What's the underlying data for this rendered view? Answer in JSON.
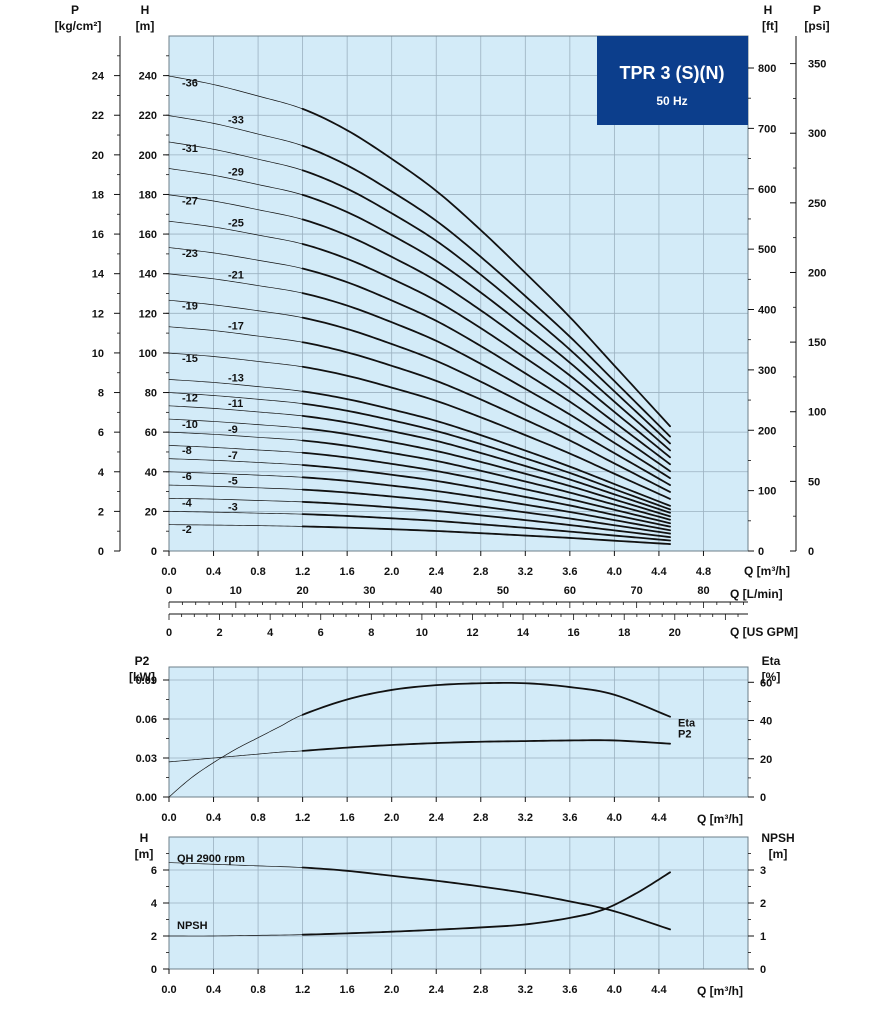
{
  "badge": {
    "title": "TPR 3 (S)(N)",
    "subtitle": "50 Hz"
  },
  "colors": {
    "plot_bg": "#d3ebf8",
    "grid": "#9bb1c0",
    "curve": "#111111",
    "badge_bg": "#0c3e8c",
    "badge_text": "#ffffff"
  },
  "units": {
    "p_kg_left": [
      "P",
      "[kg/cm²]"
    ],
    "h_m_left": [
      "H",
      "[m]"
    ],
    "h_ft_right": [
      "H",
      "[ft]"
    ],
    "p_psi_right": [
      "P",
      "[psi]"
    ],
    "q_m3h": "Q [m³/h]",
    "q_lmin": "Q [L/min]",
    "q_usgpm": "Q [US GPM]",
    "p2": [
      "P2",
      "[kW]"
    ],
    "eta": [
      "Eta",
      "[%]"
    ],
    "npsh_h": [
      "H",
      "[m]"
    ],
    "npsh_right": [
      "NPSH",
      "[m]"
    ]
  },
  "chart_data": [
    {
      "type": "line",
      "name": "head",
      "xlabel": "Q [m³/h]",
      "ylabel": "H [m]",
      "xlim": [
        0,
        5.2
      ],
      "ylim": [
        0,
        260
      ],
      "x_ticks": [
        "0.0",
        "0.4",
        "0.8",
        "1.2",
        "1.6",
        "2.0",
        "2.4",
        "2.8",
        "3.2",
        "3.6",
        "4.0",
        "4.4",
        "4.8"
      ],
      "y_ticks": [
        "0",
        "20",
        "40",
        "60",
        "80",
        "100",
        "120",
        "140",
        "160",
        "180",
        "200",
        "220",
        "240"
      ],
      "p_kgcm2_ticks": [
        "0",
        "2",
        "4",
        "6",
        "8",
        "10",
        "12",
        "14",
        "16",
        "18",
        "20",
        "22",
        "24"
      ],
      "h_ft_ticks": [
        "0",
        "100",
        "200",
        "300",
        "400",
        "500",
        "600",
        "700",
        "800"
      ],
      "p_psi_ticks": [
        "0",
        "50",
        "100",
        "150",
        "200",
        "250",
        "300",
        "350"
      ],
      "q_lmin_ticks": [
        "0",
        "10",
        "20",
        "30",
        "40",
        "50",
        "60",
        "70",
        "80"
      ],
      "q_usgpm_ticks": [
        "0",
        "2",
        "4",
        "6",
        "8",
        "10",
        "12",
        "14",
        "16",
        "18",
        "20"
      ],
      "x": [
        0,
        0.4,
        0.8,
        1.2,
        1.6,
        2.0,
        2.4,
        2.8,
        3.2,
        3.6,
        4.0,
        4.5
      ],
      "series": [
        {
          "name": "-2",
          "values": [
            13.3,
            13.1,
            12.8,
            12.4,
            11.8,
            11.0,
            10.1,
            9.0,
            7.8,
            6.6,
            5.2,
            3.5
          ]
        },
        {
          "name": "-3",
          "values": [
            20.0,
            19.6,
            19.1,
            18.6,
            17.7,
            16.5,
            15.2,
            13.5,
            11.7,
            9.8,
            7.8,
            5.3
          ]
        },
        {
          "name": "-4",
          "values": [
            26.6,
            26.2,
            25.5,
            24.8,
            23.6,
            22.0,
            20.2,
            18.0,
            15.6,
            13.1,
            10.4,
            7.0
          ]
        },
        {
          "name": "-5",
          "values": [
            33.3,
            32.7,
            31.9,
            31.0,
            29.5,
            27.5,
            25.3,
            22.5,
            19.5,
            16.4,
            13.0,
            8.8
          ]
        },
        {
          "name": "-6",
          "values": [
            40.0,
            39.2,
            38.3,
            37.2,
            35.4,
            33.0,
            30.3,
            27.0,
            23.4,
            19.7,
            15.6,
            10.5
          ]
        },
        {
          "name": "-7",
          "values": [
            46.6,
            45.8,
            44.7,
            43.4,
            41.3,
            38.5,
            35.4,
            31.5,
            27.3,
            23.0,
            18.2,
            12.3
          ]
        },
        {
          "name": "-8",
          "values": [
            53.3,
            52.3,
            51.0,
            49.6,
            47.2,
            44.0,
            40.4,
            36.0,
            31.2,
            26.2,
            20.8,
            14.0
          ]
        },
        {
          "name": "-9",
          "values": [
            60.0,
            58.9,
            57.4,
            55.8,
            53.1,
            49.5,
            45.5,
            40.5,
            35.1,
            29.5,
            23.4,
            15.8
          ]
        },
        {
          "name": "-10",
          "values": [
            66.6,
            65.4,
            63.8,
            62.0,
            59.0,
            55.0,
            50.5,
            45.0,
            39.0,
            32.8,
            26.0,
            17.5
          ]
        },
        {
          "name": "-11",
          "values": [
            73.3,
            72.0,
            70.2,
            68.2,
            64.9,
            60.5,
            55.6,
            49.5,
            42.9,
            36.1,
            28.6,
            19.3
          ]
        },
        {
          "name": "-12",
          "values": [
            80.0,
            78.5,
            76.6,
            74.4,
            70.8,
            66.0,
            60.6,
            54.0,
            46.8,
            39.4,
            31.2,
            21.0
          ]
        },
        {
          "name": "-13",
          "values": [
            86.6,
            85.1,
            83.0,
            80.6,
            76.7,
            71.5,
            65.7,
            58.5,
            50.7,
            42.6,
            33.8,
            22.8
          ]
        },
        {
          "name": "-15",
          "values": [
            99.9,
            98.2,
            95.7,
            93.0,
            88.5,
            82.5,
            75.8,
            67.5,
            58.5,
            49.2,
            39.0,
            26.3
          ]
        },
        {
          "name": "-17",
          "values": [
            113.2,
            111.3,
            108.5,
            105.4,
            100.3,
            93.5,
            85.9,
            76.5,
            66.3,
            55.8,
            44.2,
            29.8
          ]
        },
        {
          "name": "-19",
          "values": [
            126.6,
            124.3,
            121.3,
            117.8,
            112.1,
            104.5,
            96.0,
            85.5,
            74.1,
            62.3,
            49.4,
            33.3
          ]
        },
        {
          "name": "-21",
          "values": [
            139.9,
            137.4,
            134.0,
            130.2,
            123.9,
            115.5,
            106.1,
            94.5,
            81.9,
            68.9,
            54.6,
            36.8
          ]
        },
        {
          "name": "-23",
          "values": [
            153.2,
            150.5,
            146.8,
            142.6,
            135.7,
            126.5,
            116.2,
            103.5,
            89.7,
            75.4,
            59.8,
            40.3
          ]
        },
        {
          "name": "-25",
          "values": [
            166.5,
            163.6,
            159.5,
            155.0,
            147.5,
            137.5,
            126.3,
            112.5,
            97.5,
            82.0,
            65.0,
            43.8
          ]
        },
        {
          "name": "-27",
          "values": [
            179.8,
            176.7,
            172.3,
            167.4,
            159.3,
            148.5,
            136.4,
            121.5,
            105.3,
            88.6,
            70.2,
            47.3
          ]
        },
        {
          "name": "-29",
          "values": [
            193.1,
            189.7,
            185.0,
            179.8,
            171.1,
            159.5,
            146.5,
            130.5,
            113.1,
            95.1,
            75.4,
            50.8
          ]
        },
        {
          "name": "-31",
          "values": [
            206.5,
            202.8,
            197.8,
            192.2,
            182.9,
            170.5,
            156.6,
            139.5,
            120.9,
            101.7,
            80.6,
            54.3
          ]
        },
        {
          "name": "-33",
          "values": [
            219.8,
            215.9,
            210.5,
            204.6,
            194.7,
            181.5,
            166.7,
            148.5,
            128.7,
            108.2,
            85.8,
            57.8
          ]
        },
        {
          "name": "-36",
          "values": [
            239.8,
            235.5,
            229.7,
            223.2,
            212.4,
            198.0,
            181.8,
            162.0,
            140.4,
            118.1,
            93.6,
            63.0
          ]
        }
      ],
      "fine_section": "Q 0 to 1.2 drawn with thin line"
    },
    {
      "type": "line",
      "name": "power-efficiency",
      "xlabel": "Q [m³/h]",
      "x_ticks": [
        "0.0",
        "0.4",
        "0.8",
        "1.2",
        "1.6",
        "2.0",
        "2.4",
        "2.8",
        "3.2",
        "3.6",
        "4.0",
        "4.4"
      ],
      "y_left_ticks": [
        "0.00",
        "0.03",
        "0.06",
        "0.09"
      ],
      "y_right_ticks": [
        "0",
        "20",
        "40",
        "60"
      ],
      "ylim_left": [
        0,
        0.1
      ],
      "ylim_right": [
        0,
        68
      ],
      "series": [
        {
          "name": "P2",
          "axis": "left",
          "x": [
            0,
            0.2,
            0.4,
            0.6,
            0.8,
            1.0,
            1.2,
            1.6,
            2.0,
            2.4,
            2.8,
            3.2,
            3.6,
            4.0,
            4.5
          ],
          "values": [
            0.027,
            0.0285,
            0.03,
            0.0315,
            0.033,
            0.0345,
            0.0355,
            0.038,
            0.04,
            0.0415,
            0.0425,
            0.043,
            0.0435,
            0.0435,
            0.041
          ]
        },
        {
          "name": "Eta",
          "axis": "right",
          "x": [
            0,
            0.2,
            0.4,
            0.6,
            0.8,
            1.0,
            1.2,
            1.6,
            2.0,
            2.4,
            2.8,
            3.2,
            3.6,
            4.0,
            4.5
          ],
          "values": [
            0,
            10,
            18,
            25,
            31,
            37,
            43,
            51,
            56,
            58.5,
            59.5,
            59.5,
            57.5,
            53.5,
            42
          ]
        }
      ]
    },
    {
      "type": "line",
      "name": "npsh",
      "xlabel": "Q [m³/h]",
      "x_ticks": [
        "0.0",
        "0.4",
        "0.8",
        "1.2",
        "1.6",
        "2.0",
        "2.4",
        "2.8",
        "3.2",
        "3.6",
        "4.0",
        "4.4"
      ],
      "y_left_ticks": [
        "0",
        "2",
        "4",
        "6"
      ],
      "y_right_ticks": [
        "0",
        "1",
        "2",
        "3"
      ],
      "ylim_left": [
        0,
        8
      ],
      "ylim_right": [
        0,
        4
      ],
      "annotations": [
        "QH 2900 rpm",
        "NPSH"
      ],
      "series": [
        {
          "name": "QH 2900 rpm",
          "axis": "left",
          "x": [
            0,
            0.4,
            0.8,
            1.2,
            1.6,
            2.0,
            2.4,
            2.8,
            3.2,
            3.6,
            4.0,
            4.5
          ],
          "values": [
            6.45,
            6.35,
            6.25,
            6.15,
            5.95,
            5.65,
            5.35,
            5.0,
            4.6,
            4.1,
            3.5,
            2.4
          ]
        },
        {
          "name": "NPSH",
          "axis": "right",
          "x": [
            0,
            0.4,
            0.8,
            1.2,
            1.6,
            2.0,
            2.4,
            2.8,
            3.2,
            3.6,
            3.9,
            4.2,
            4.5
          ],
          "values": [
            1.0,
            1.0,
            1.02,
            1.04,
            1.08,
            1.13,
            1.19,
            1.26,
            1.35,
            1.55,
            1.8,
            2.3,
            2.93
          ]
        }
      ]
    }
  ]
}
